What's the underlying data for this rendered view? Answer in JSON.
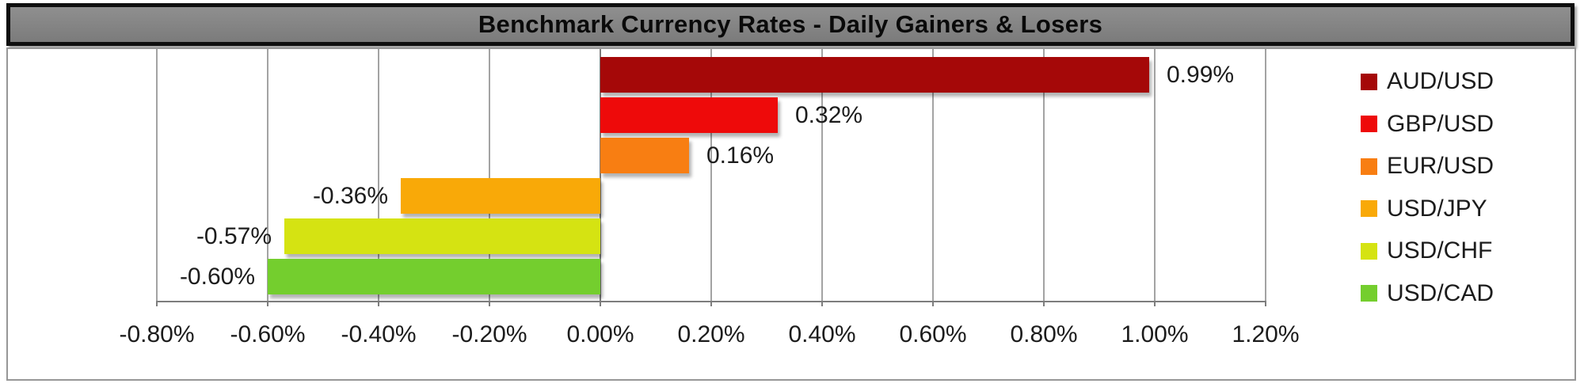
{
  "title": "Benchmark Currency Rates - Daily Gainers & Losers",
  "title_bar": {
    "bg_color": "#828282",
    "border_color": "#0f0f0f",
    "text_color": "#0a0a0a"
  },
  "chart_data": {
    "type": "bar",
    "orientation": "horizontal",
    "title": "Benchmark Currency Rates - Daily Gainers & Losers",
    "categories": [
      "AUD/USD",
      "GBP/USD",
      "EUR/USD",
      "USD/JPY",
      "USD/CHF",
      "USD/CAD"
    ],
    "values": [
      0.99,
      0.32,
      0.16,
      -0.36,
      -0.57,
      -0.6
    ],
    "series": [
      {
        "name": "AUD/USD",
        "value": 0.99,
        "label": "0.99%",
        "color": "#A50808"
      },
      {
        "name": "GBP/USD",
        "value": 0.32,
        "label": "0.32%",
        "color": "#EE0A0A"
      },
      {
        "name": "EUR/USD",
        "value": 0.16,
        "label": "0.16%",
        "color": "#F87E12"
      },
      {
        "name": "USD/JPY",
        "value": -0.36,
        "label": "-0.36%",
        "color": "#F9A908"
      },
      {
        "name": "USD/CHF",
        "value": -0.57,
        "label": "-0.57%",
        "color": "#D5E312"
      },
      {
        "name": "USD/CAD",
        "value": -0.6,
        "label": "-0.60%",
        "color": "#74CE2E"
      }
    ],
    "xlim": [
      -0.8,
      1.2
    ],
    "x_tick_values": [
      -0.8,
      -0.6,
      -0.4,
      -0.2,
      0,
      0.2,
      0.4,
      0.6,
      0.8,
      1.0,
      1.2
    ],
    "x_ticks": [
      "-0.80%",
      "-0.60%",
      "-0.40%",
      "-0.20%",
      "0.00%",
      "0.20%",
      "0.40%",
      "0.60%",
      "0.80%",
      "1.00%",
      "1.20%"
    ],
    "xlabel": "",
    "ylabel": "",
    "grid": true,
    "legend_position": "right",
    "grid_color": "#a3a3a3",
    "axis_color": "#7d7d7d",
    "text_color": "#1c1c1c"
  }
}
